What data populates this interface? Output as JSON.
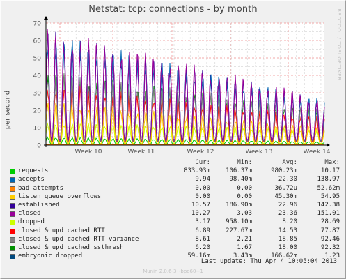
{
  "title": "Netstat: tcp: connections - by month",
  "ylabel": "per second",
  "watermark": "RRDTOOL / TOBI OETIKER",
  "legend_header": {
    "cur": "Cur:",
    "min": "Min:",
    "avg": "Avg:",
    "max": "Max:"
  },
  "last_update": "Last update:  Thu Apr  4 10:05:04 2013",
  "footer": "Munin 2.0.6-3~bpo60+1",
  "colors": {
    "background": "#f0f0f0",
    "plot_bg": "#ffffff",
    "grid_major": "#f4a0a0",
    "grid_minor": "#dcdcdc"
  },
  "chart_data": {
    "type": "line",
    "title": "Netstat: tcp: connections - by month",
    "ylabel": "per second",
    "xlabel": "",
    "ylim": [
      0,
      70
    ],
    "yticks": [
      0,
      10,
      20,
      30,
      40,
      50,
      60,
      70
    ],
    "xticks": [
      "Week 10",
      "Week 11",
      "Week 12",
      "Week 13",
      "Week 14"
    ],
    "grid": true,
    "legend_position": "below",
    "series": [
      {
        "name": "requests",
        "color": "#00cc00",
        "cur": "833.93m",
        "min": "106.37m",
        "avg": "980.23m",
        "max": "10.17"
      },
      {
        "name": "accepts",
        "color": "#0066b3",
        "cur": "9.94",
        "min": "98.40m",
        "avg": "22.30",
        "max": "138.97"
      },
      {
        "name": "bad attempts",
        "color": "#ff8000",
        "cur": "0.00",
        "min": "0.00",
        "avg": "36.72u",
        "max": "52.62m"
      },
      {
        "name": "listen queue overflows",
        "color": "#ffcc00",
        "cur": "0.00",
        "min": "0.00",
        "avg": "45.30m",
        "max": "54.95"
      },
      {
        "name": "established",
        "color": "#330099",
        "cur": "10.57",
        "min": "186.90m",
        "avg": "22.96",
        "max": "142.38"
      },
      {
        "name": "closed",
        "color": "#990099",
        "cur": "10.27",
        "min": "3.03",
        "avg": "23.36",
        "max": "151.01"
      },
      {
        "name": "dropped",
        "color": "#ccff00",
        "cur": "3.17",
        "min": "958.10m",
        "avg": "8.20",
        "max": "28.69"
      },
      {
        "name": "closed & upd cached RTT",
        "color": "#ff0000",
        "cur": "6.89",
        "min": "227.67m",
        "avg": "14.53",
        "max": "77.87"
      },
      {
        "name": "closed & upd cached RTT variance",
        "color": "#808080",
        "cur": "8.61",
        "min": "2.21",
        "avg": "18.85",
        "max": "92.46"
      },
      {
        "name": "closed & upd cached ssthresh",
        "color": "#008f00",
        "cur": "6.20",
        "min": "1.67",
        "avg": "18.00",
        "max": "92.32"
      },
      {
        "name": "embryonic dropped",
        "color": "#00487d",
        "cur": "59.16m",
        "min": "3.43m",
        "avg": "166.62m",
        "max": "1.23"
      }
    ]
  }
}
